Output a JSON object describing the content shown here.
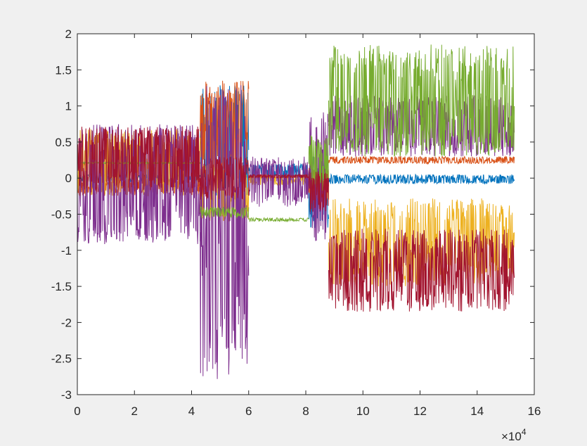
{
  "window": {
    "background": "#f0f0f0"
  },
  "chart_data": {
    "type": "line",
    "title": "",
    "xlabel": "",
    "ylabel": "",
    "xlim": [
      0,
      16
    ],
    "ylim": [
      -3,
      2
    ],
    "x_ticks": [
      0,
      2,
      4,
      6,
      8,
      10,
      12,
      14,
      16
    ],
    "x_tick_labels": [
      "0",
      "2",
      "4",
      "6",
      "8",
      "10",
      "12",
      "14",
      "16"
    ],
    "y_ticks": [
      -3,
      -2.5,
      -2,
      -1.5,
      -1,
      -0.5,
      0,
      0.5,
      1,
      1.5,
      2
    ],
    "y_tick_labels": [
      "-3",
      "-2.5",
      "-2",
      "-1.5",
      "-1",
      "-0.5",
      "0",
      "0.5",
      "1",
      "1.5",
      "2"
    ],
    "x_exponent_label": "×10",
    "x_exponent_power": "4",
    "grid": false,
    "legend": "none",
    "data_x_extent": [
      0,
      15.3
    ],
    "series": [
      {
        "color": "#0072BD",
        "segments": [
          {
            "x": [
              0,
              4.3
            ],
            "y": [
              -0.05,
              0.05
            ]
          },
          {
            "x": [
              4.3,
              6.0
            ],
            "y": [
              -0.25,
              1.3
            ]
          },
          {
            "x": [
              6.0,
              8.1
            ],
            "y": [
              0.0,
              0.2
            ]
          },
          {
            "x": [
              8.1,
              8.8
            ],
            "y": [
              -0.7,
              0.3
            ]
          },
          {
            "x": [
              8.8,
              15.3
            ],
            "y": [
              -0.08,
              0.05
            ]
          }
        ]
      },
      {
        "color": "#D95319",
        "segments": [
          {
            "x": [
              0,
              4.3
            ],
            "y": [
              -0.25,
              0.0
            ]
          },
          {
            "x": [
              4.3,
              6.0
            ],
            "y": [
              -0.05,
              1.35
            ]
          },
          {
            "x": [
              6.0,
              8.1
            ],
            "y": [
              0.0,
              0.02
            ]
          },
          {
            "x": [
              8.1,
              8.8
            ],
            "y": [
              -0.3,
              0.2
            ]
          },
          {
            "x": [
              8.8,
              15.3
            ],
            "y": [
              0.2,
              0.3
            ]
          }
        ]
      },
      {
        "color": "#EDB120",
        "segments": [
          {
            "x": [
              0,
              4.3
            ],
            "y": [
              -0.25,
              0.68
            ]
          },
          {
            "x": [
              4.3,
              6.0
            ],
            "y": [
              -0.6,
              0.2
            ]
          },
          {
            "x": [
              6.0,
              8.1
            ],
            "y": [
              -0.1,
              0.05
            ]
          },
          {
            "x": [
              8.1,
              8.8
            ],
            "y": [
              -0.3,
              0.1
            ]
          },
          {
            "x": [
              8.8,
              15.3
            ],
            "y": [
              -1.5,
              -0.28
            ]
          }
        ]
      },
      {
        "color": "#7E2F8E",
        "segments": [
          {
            "x": [
              0,
              4.3
            ],
            "y": [
              -0.93,
              0.75
            ]
          },
          {
            "x": [
              4.3,
              6.0
            ],
            "y": [
              -2.8,
              1.3
            ]
          },
          {
            "x": [
              6.0,
              8.1
            ],
            "y": [
              -0.4,
              0.3
            ]
          },
          {
            "x": [
              8.1,
              8.8
            ],
            "y": [
              -0.9,
              0.92
            ]
          },
          {
            "x": [
              8.8,
              15.3
            ],
            "y": [
              0.3,
              1.15
            ]
          }
        ]
      },
      {
        "color": "#77AC30",
        "segments": [
          {
            "x": [
              0,
              4.3
            ],
            "y": [
              0.2,
              0.22
            ]
          },
          {
            "x": [
              4.3,
              6.0
            ],
            "y": [
              -0.55,
              -0.4
            ]
          },
          {
            "x": [
              6.0,
              8.1
            ],
            "y": [
              -0.6,
              -0.55
            ]
          },
          {
            "x": [
              8.1,
              8.8
            ],
            "y": [
              -0.2,
              0.6
            ]
          },
          {
            "x": [
              8.8,
              15.3
            ],
            "y": [
              0.3,
              1.85
            ]
          }
        ]
      },
      {
        "color": "#A2142F",
        "segments": [
          {
            "x": [
              0,
              4.3
            ],
            "y": [
              -0.2,
              0.72
            ]
          },
          {
            "x": [
              4.3,
              6.0
            ],
            "y": [
              -0.3,
              0.3
            ]
          },
          {
            "x": [
              6.0,
              8.1
            ],
            "y": [
              0.0,
              0.05
            ]
          },
          {
            "x": [
              8.1,
              8.8
            ],
            "y": [
              -0.5,
              0.1
            ]
          },
          {
            "x": [
              8.8,
              15.3
            ],
            "y": [
              -1.85,
              -0.7
            ]
          }
        ]
      }
    ]
  }
}
